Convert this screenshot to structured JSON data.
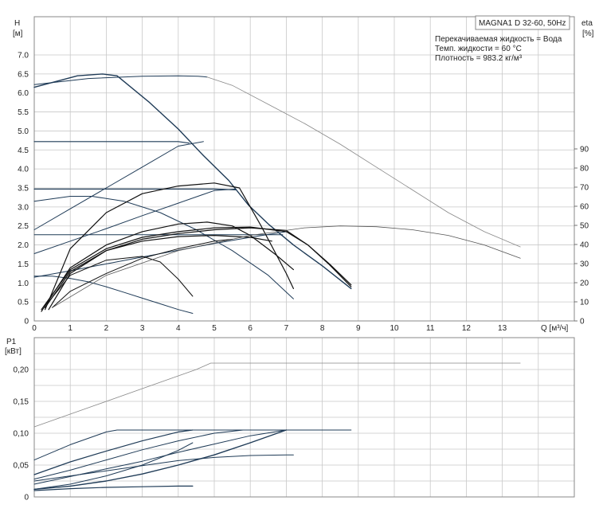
{
  "chart_data": [
    {
      "type": "line",
      "title": "MAGNA1 D 32-60, 50Hz",
      "info_lines": [
        "Перекачиваемая жидкость = Вода",
        "Темп. жидкости = 60 °C",
        "Плотность = 983.2 кг/м³"
      ],
      "ylabel_symbol": "H",
      "ylabel_unit": "[м]",
      "y2label_symbol": "eta",
      "y2label_unit": "[%]",
      "xlabel": "Q [м³/ч]",
      "xlim": [
        0,
        15
      ],
      "ylim": [
        0,
        7.0
      ],
      "y2lim": [
        0,
        90
      ],
      "xticks": [
        0,
        1,
        2,
        3,
        4,
        5,
        6,
        7,
        8,
        9,
        10,
        11,
        12,
        13
      ],
      "yticks": [
        "0",
        "0.5",
        "1.0",
        "1.5",
        "2.0",
        "2.5",
        "3.0",
        "3.5",
        "4.0",
        "4.5",
        "5.0",
        "5.5",
        "6.0",
        "6.5",
        "7.0"
      ],
      "y2ticks": [
        "0",
        "10",
        "20",
        "30",
        "40",
        "50",
        "60",
        "70",
        "80",
        "90"
      ],
      "grid": true,
      "series": [
        {
          "color": "#1f3b57",
          "width": 1.4,
          "x": [
            0,
            1.2,
            1.9,
            2.3,
            3.2,
            4.0,
            4.7,
            5.4,
            5.95,
            6.5,
            7.2,
            8.0,
            8.8
          ],
          "y": [
            6.15,
            6.45,
            6.5,
            6.45,
            5.75,
            5.05,
            4.35,
            3.7,
            3.05,
            2.55,
            2.0,
            1.45,
            0.85
          ]
        },
        {
          "color": "#1f3b57",
          "width": 1.0,
          "x": [
            0,
            1.5,
            3.0,
            4.0,
            4.55,
            4.8
          ],
          "y": [
            6.22,
            6.38,
            6.44,
            6.45,
            6.44,
            6.42
          ]
        },
        {
          "color": "#888888",
          "width": 0.8,
          "x": [
            4.8,
            5.5,
            6.5,
            7.5,
            8.5,
            9.5,
            10.5,
            11.5,
            12.5,
            13.5
          ],
          "y": [
            6.42,
            6.2,
            5.7,
            5.2,
            4.65,
            4.05,
            3.45,
            2.85,
            2.35,
            1.95
          ]
        },
        {
          "color": "#1f3b57",
          "width": 1.2,
          "x": [
            0,
            1.0,
            2.0,
            3.0,
            4.0,
            4.3
          ],
          "y": [
            4.72,
            4.72,
            4.72,
            4.72,
            4.72,
            4.68
          ]
        },
        {
          "color": "#1f3b57",
          "width": 1.2,
          "x": [
            0,
            1.0,
            2.0,
            3.0,
            4.0,
            5.0,
            5.6
          ],
          "y": [
            3.47,
            3.47,
            3.47,
            3.47,
            3.47,
            3.47,
            3.45
          ]
        },
        {
          "color": "#1f3b57",
          "width": 1.0,
          "x": [
            0,
            1.0,
            2.0,
            3.0,
            4.0,
            5.0,
            6.0,
            6.9
          ],
          "y": [
            2.27,
            2.27,
            2.27,
            2.27,
            2.27,
            2.27,
            2.27,
            2.27
          ]
        },
        {
          "color": "#1f3b57",
          "width": 1.0,
          "x": [
            0,
            1.0,
            1.6,
            2.5,
            3.5,
            4.5,
            5.5,
            6.5,
            7.2
          ],
          "y": [
            3.15,
            3.28,
            3.28,
            3.15,
            2.85,
            2.4,
            1.85,
            1.2,
            0.58
          ]
        },
        {
          "color": "#1f3b57",
          "width": 1.0,
          "x": [
            0,
            0.5,
            1.0,
            1.5,
            2.0,
            2.5,
            3.0,
            3.5,
            4.0,
            4.4
          ],
          "y": [
            1.18,
            1.18,
            1.12,
            1.03,
            0.9,
            0.75,
            0.6,
            0.45,
            0.3,
            0.2
          ]
        },
        {
          "color": "#1f3b57",
          "width": 1.0,
          "x": [
            0,
            1.0,
            2.0,
            3.0,
            4.0,
            4.7
          ],
          "y": [
            2.4,
            2.95,
            3.5,
            4.05,
            4.6,
            4.72
          ]
        },
        {
          "color": "#1f3b57",
          "width": 1.0,
          "x": [
            0,
            1.0,
            2.0,
            3.0,
            4.0,
            5.0,
            5.6
          ],
          "y": [
            1.77,
            2.1,
            2.43,
            2.77,
            3.1,
            3.43,
            3.47
          ]
        },
        {
          "color": "#1f3b57",
          "width": 1.0,
          "x": [
            0,
            1.0,
            2.0,
            3.0,
            4.0,
            5.0,
            6.0,
            7.0
          ],
          "y": [
            1.15,
            1.32,
            1.5,
            1.68,
            1.86,
            2.04,
            2.2,
            2.35
          ]
        },
        {
          "color": "#111111",
          "width": 1.2,
          "x": [
            0.3,
            1.0,
            2.0,
            3.0,
            4.0,
            5.0,
            5.7
          ],
          "y": [
            0.3,
            1.9,
            2.85,
            3.35,
            3.55,
            3.63,
            3.5
          ]
        },
        {
          "color": "#111111",
          "width": 1.2,
          "x": [
            5.7,
            6.3,
            7.0,
            7.2
          ],
          "y": [
            3.5,
            2.5,
            1.25,
            0.85
          ]
        },
        {
          "color": "#111111",
          "width": 1.2,
          "x": [
            0.2,
            1.0,
            2.0,
            3.0,
            4.0,
            4.8,
            5.5,
            6.0,
            6.7,
            7.2
          ],
          "y": [
            0.25,
            1.4,
            2.0,
            2.35,
            2.55,
            2.6,
            2.5,
            2.25,
            1.75,
            1.35
          ]
        },
        {
          "color": "#111111",
          "width": 1.2,
          "x": [
            0.2,
            1.0,
            2.0,
            3.0,
            4.0,
            5.0,
            6.0,
            7.0,
            7.6,
            8.2,
            8.8
          ],
          "y": [
            0.3,
            1.35,
            1.9,
            2.2,
            2.35,
            2.45,
            2.47,
            2.35,
            2.0,
            1.5,
            0.95
          ]
        },
        {
          "color": "#111111",
          "width": 1.2,
          "x": [
            0.4,
            1.0,
            2.0,
            3.0,
            4.0,
            5.0,
            6.0,
            7.0,
            7.6,
            8.2,
            8.8
          ],
          "y": [
            0.3,
            1.25,
            1.85,
            2.15,
            2.3,
            2.4,
            2.45,
            2.38,
            2.0,
            1.48,
            0.9
          ]
        },
        {
          "color": "#111111",
          "width": 1.2,
          "x": [
            0.3,
            1.0,
            2.0,
            3.0,
            4.0,
            5.0,
            6.0,
            6.6
          ],
          "y": [
            0.35,
            1.3,
            1.85,
            2.1,
            2.22,
            2.25,
            2.2,
            2.1
          ]
        },
        {
          "color": "#111111",
          "width": 1.0,
          "x": [
            0.4,
            1.0,
            2.0,
            3.0,
            3.5,
            4.0,
            4.4
          ],
          "y": [
            0.5,
            1.2,
            1.6,
            1.7,
            1.55,
            1.1,
            0.65
          ]
        },
        {
          "color": "#111111",
          "width": 1.0,
          "x": [
            0.5,
            1.0,
            2.0,
            3.0,
            4.0,
            5.0,
            5.5
          ],
          "y": [
            0.35,
            0.78,
            1.25,
            1.65,
            1.9,
            2.1,
            2.15
          ]
        },
        {
          "color": "#555555",
          "width": 0.8,
          "x": [
            0.5,
            2.0,
            4.0,
            6.0,
            7.5,
            8.5,
            9.5,
            10.5,
            11.5,
            12.5,
            13.5
          ],
          "y": [
            0.35,
            1.2,
            1.85,
            2.25,
            2.45,
            2.5,
            2.48,
            2.4,
            2.25,
            2.0,
            1.65
          ]
        }
      ]
    },
    {
      "type": "line",
      "ylabel_symbol": "P1",
      "ylabel_unit": "[кВт]",
      "xlim": [
        0,
        15
      ],
      "ylim": [
        0,
        0.25
      ],
      "yticks": [
        "0",
        "0,05",
        "0,10",
        "0,15",
        "0,20"
      ],
      "grid": true,
      "series": [
        {
          "color": "#888888",
          "width": 0.8,
          "x": [
            0,
            1.5,
            3.0,
            4.5,
            4.9,
            6.0,
            8.0,
            10.0,
            12.0,
            13.5
          ],
          "y": [
            0.11,
            0.14,
            0.17,
            0.2,
            0.21,
            0.21,
            0.21,
            0.21,
            0.21,
            0.21
          ]
        },
        {
          "color": "#1f3b57",
          "width": 1.0,
          "x": [
            0,
            1.0,
            2.0,
            2.3,
            3.0,
            4.0,
            5.0,
            6.0,
            7.0,
            8.0,
            8.8
          ],
          "y": [
            0.058,
            0.082,
            0.102,
            0.105,
            0.105,
            0.105,
            0.105,
            0.105,
            0.105,
            0.105,
            0.105
          ]
        },
        {
          "color": "#1f3b57",
          "width": 1.2,
          "x": [
            0,
            1.0,
            2.0,
            3.0,
            4.0,
            4.4
          ],
          "y": [
            0.035,
            0.055,
            0.072,
            0.088,
            0.102,
            0.105
          ]
        },
        {
          "color": "#1f3b57",
          "width": 1.0,
          "x": [
            0,
            1.0,
            2.0,
            3.0,
            4.0,
            5.0,
            5.8
          ],
          "y": [
            0.028,
            0.042,
            0.058,
            0.074,
            0.088,
            0.1,
            0.105
          ]
        },
        {
          "color": "#1f3b57",
          "width": 1.0,
          "x": [
            0,
            1.0,
            2.0,
            3.0,
            4.0,
            5.0,
            6.0,
            7.0
          ],
          "y": [
            0.02,
            0.032,
            0.044,
            0.056,
            0.07,
            0.083,
            0.096,
            0.105
          ]
        },
        {
          "color": "#1f3b57",
          "width": 1.4,
          "x": [
            0,
            1.0,
            2.0,
            3.0,
            4.0,
            5.0,
            6.0,
            7.0
          ],
          "y": [
            0.012,
            0.017,
            0.025,
            0.036,
            0.05,
            0.066,
            0.085,
            0.105
          ]
        },
        {
          "color": "#1f3b57",
          "width": 1.0,
          "x": [
            0,
            1.0,
            2.0,
            3.0,
            4.0,
            5.0,
            6.0,
            7.0,
            7.2
          ],
          "y": [
            0.025,
            0.033,
            0.041,
            0.049,
            0.057,
            0.062,
            0.065,
            0.066,
            0.066
          ]
        },
        {
          "color": "#1f3b57",
          "width": 1.2,
          "x": [
            0,
            1.0,
            2.0,
            3.0,
            4.0,
            4.4
          ],
          "y": [
            0.01,
            0.013,
            0.015,
            0.016,
            0.017,
            0.017
          ]
        },
        {
          "color": "#1f3b57",
          "width": 1.0,
          "x": [
            0,
            1.0,
            2.0,
            3.0,
            4.0,
            4.4
          ],
          "y": [
            0.012,
            0.02,
            0.033,
            0.05,
            0.073,
            0.085
          ]
        }
      ]
    }
  ]
}
